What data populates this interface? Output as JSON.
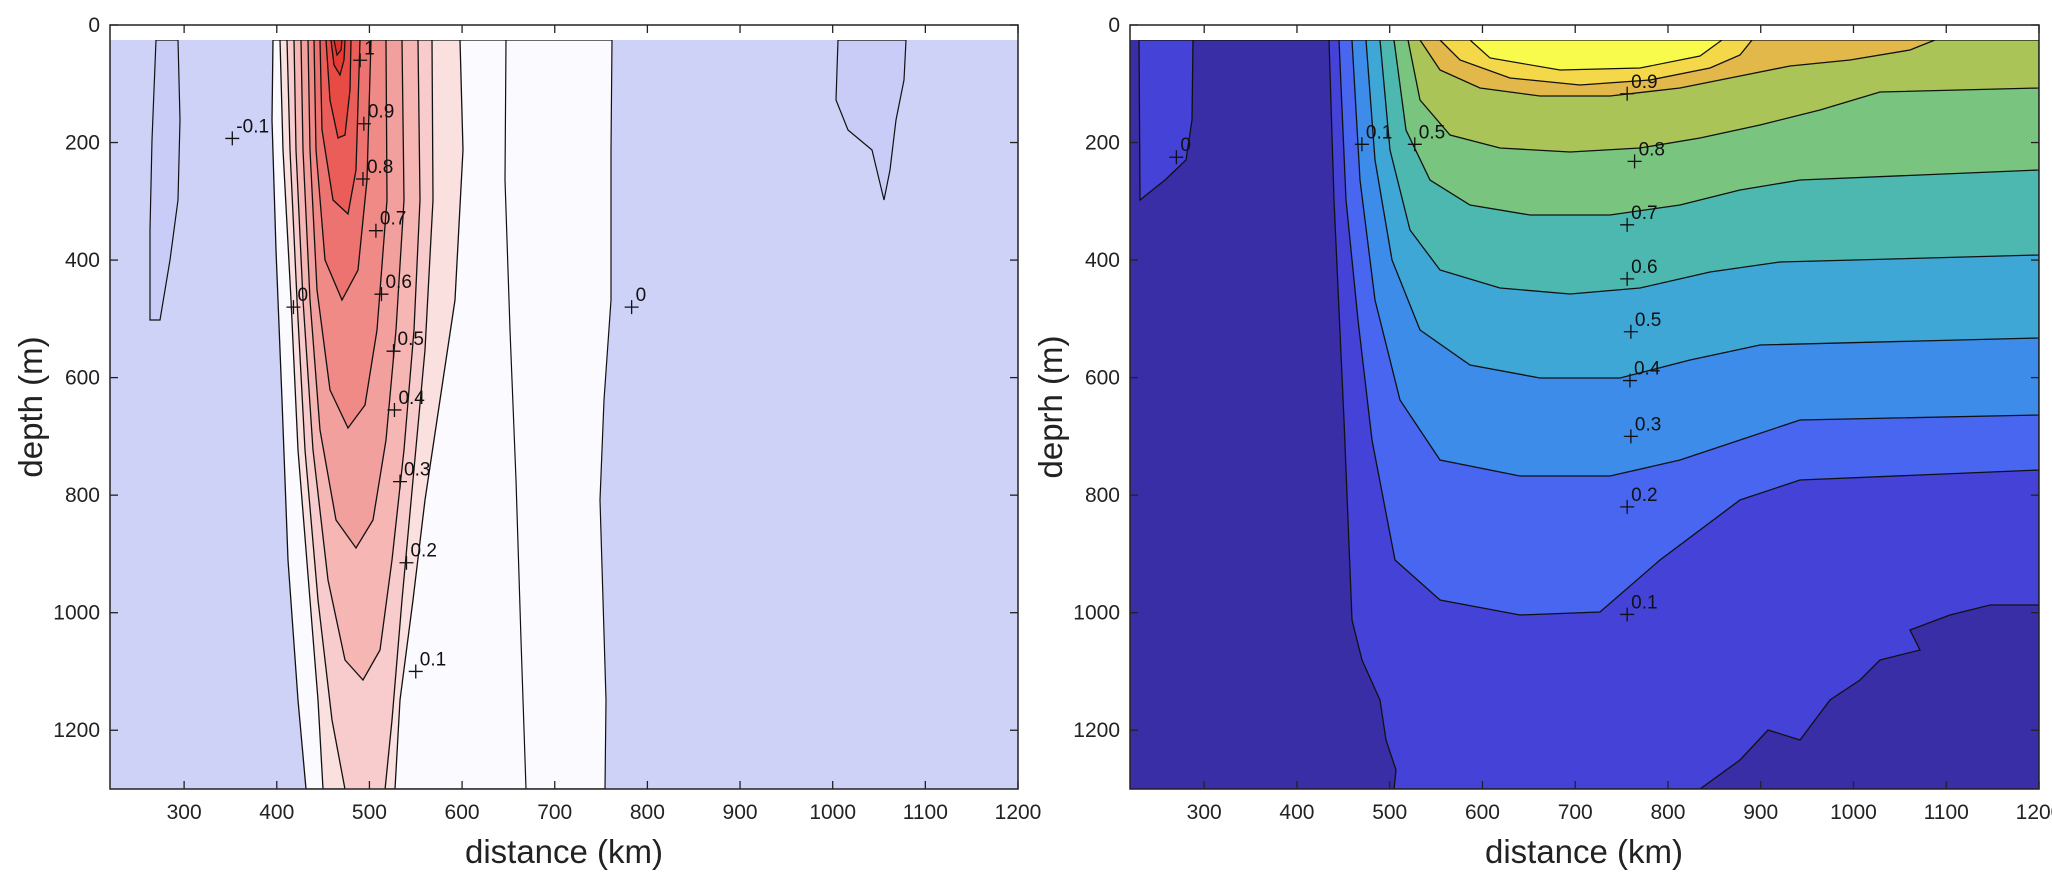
{
  "chart_data": [
    {
      "type": "contour",
      "title": "",
      "xlabel": "distance (km)",
      "ylabel": "depth (m)",
      "xlim": [
        220,
        1200
      ],
      "ylim": [
        0,
        1300
      ],
      "y_reversed": true,
      "grid": false,
      "xticks": [
        300,
        400,
        500,
        600,
        700,
        800,
        900,
        1000,
        1100,
        1200
      ],
      "yticks": [
        0,
        200,
        400,
        600,
        800,
        1000,
        1200
      ],
      "levels": [
        -0.1,
        0,
        0.1,
        0.2,
        0.3,
        0.4,
        0.5,
        0.6,
        0.7,
        0.8,
        0.9,
        1
      ],
      "colormap": "white-to-red (negative values pale blue)",
      "colors": {
        "negative": "#cfd2f7",
        "zero": "#fbfbff",
        "low": "#fbe0e0",
        "high": "#e83a32"
      },
      "contour_labels": [
        {
          "text": "1",
          "x": 490,
          "y": 60
        },
        {
          "text": "0.9",
          "x": 494,
          "y": 168
        },
        {
          "text": "0.8",
          "x": 493,
          "y": 262
        },
        {
          "text": "0.7",
          "x": 507,
          "y": 350
        },
        {
          "text": "0.6",
          "x": 513,
          "y": 458
        },
        {
          "text": "0.5",
          "x": 526,
          "y": 555
        },
        {
          "text": "0.4",
          "x": 527,
          "y": 655
        },
        {
          "text": "0.3",
          "x": 533,
          "y": 777
        },
        {
          "text": "0.2",
          "x": 540,
          "y": 915
        },
        {
          "text": "0.1",
          "x": 550,
          "y": 1100
        },
        {
          "text": "0",
          "x": 418,
          "y": 480
        },
        {
          "text": "0",
          "x": 783,
          "y": 480
        },
        {
          "text": "-0.1",
          "x": 352,
          "y": 193
        }
      ]
    },
    {
      "type": "contour",
      "title": "",
      "xlabel": "distance (km)",
      "ylabel": "deprh (m)",
      "xlim": [
        220,
        1200
      ],
      "ylim": [
        0,
        1300
      ],
      "y_reversed": true,
      "grid": false,
      "xticks": [
        300,
        400,
        500,
        600,
        700,
        800,
        900,
        1000,
        1100,
        1200
      ],
      "yticks": [
        0,
        200,
        400,
        600,
        800,
        1000,
        1200
      ],
      "levels": [
        0,
        0.1,
        0.2,
        0.3,
        0.4,
        0.5,
        0.6,
        0.7,
        0.8,
        0.9
      ],
      "colormap": "parula",
      "colors": [
        "#3a2ea6",
        "#4542d8",
        "#4866f0",
        "#3d8cea",
        "#3ea7d6",
        "#4db8b0",
        "#79c47f",
        "#aac458",
        "#e2b84a",
        "#f4d84a",
        "#f9fb4c"
      ],
      "contour_labels": [
        {
          "text": "0.9",
          "x": 756,
          "y": 117
        },
        {
          "text": "0.8",
          "x": 764,
          "y": 232
        },
        {
          "text": "0.7",
          "x": 756,
          "y": 340
        },
        {
          "text": "0.6",
          "x": 756,
          "y": 432
        },
        {
          "text": "0.5",
          "x": 760,
          "y": 522
        },
        {
          "text": "0.4",
          "x": 759,
          "y": 605
        },
        {
          "text": "0.3",
          "x": 760,
          "y": 700
        },
        {
          "text": "0.2",
          "x": 756,
          "y": 820
        },
        {
          "text": "0.1",
          "x": 756,
          "y": 1003
        },
        {
          "text": "0.1",
          "x": 470,
          "y": 203
        },
        {
          "text": "0.5",
          "x": 527,
          "y": 203
        },
        {
          "text": "0",
          "x": 270,
          "y": 225
        }
      ]
    }
  ]
}
